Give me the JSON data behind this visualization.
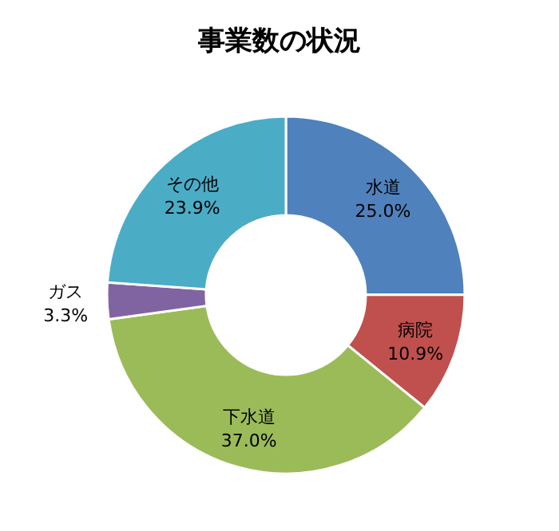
{
  "chart_data": {
    "type": "donut",
    "title": "事業数の状況",
    "categories": [
      "水道",
      "病院",
      "下水道",
      "ガス",
      "その他"
    ],
    "values": [
      25.0,
      10.9,
      37.0,
      3.3,
      23.9
    ],
    "colors": [
      "#4f81bd",
      "#c0504d",
      "#9bbb59",
      "#8064a2",
      "#4bacc6"
    ],
    "value_labels": [
      "25.0%",
      "10.9%",
      "37.0%",
      "3.3%",
      "23.9%"
    ],
    "legend": false
  }
}
